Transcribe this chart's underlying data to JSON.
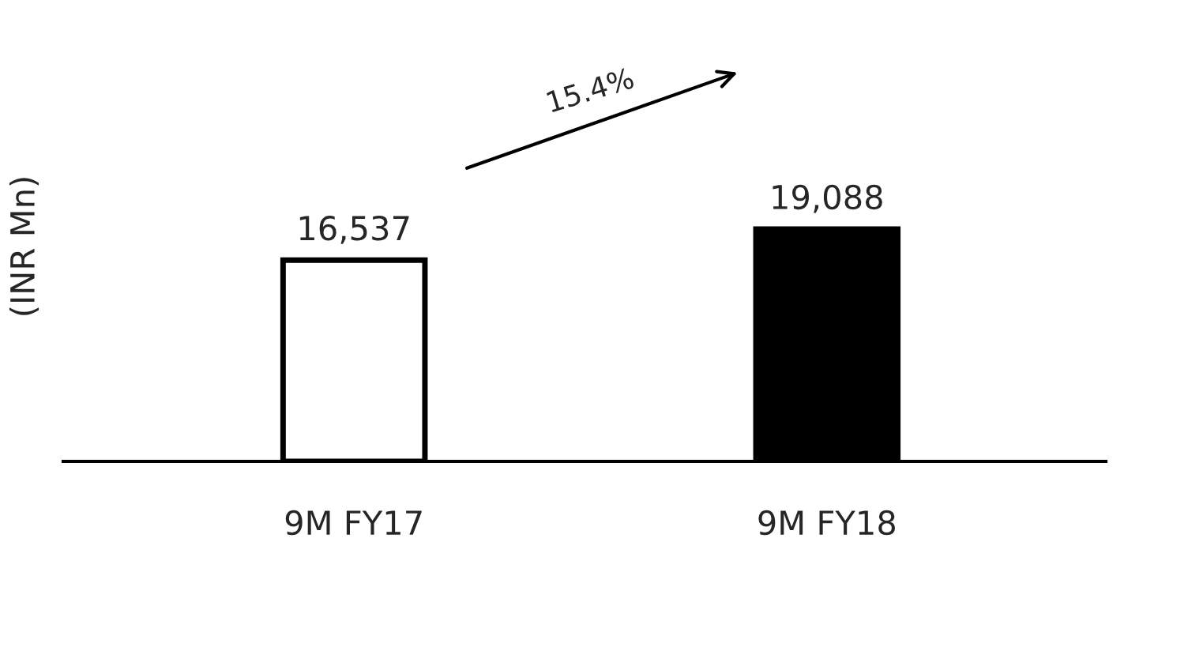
{
  "chart_data": {
    "type": "bar",
    "ylabel": "(INR Mn)",
    "categories": [
      "9M FY17",
      "9M FY18"
    ],
    "values": [
      16537,
      19088
    ],
    "colors": [
      "#ffffff",
      "#000000"
    ],
    "value_labels": [
      "16,537",
      "19,088"
    ],
    "annotations": [
      "15.4%"
    ],
    "grid": false
  }
}
